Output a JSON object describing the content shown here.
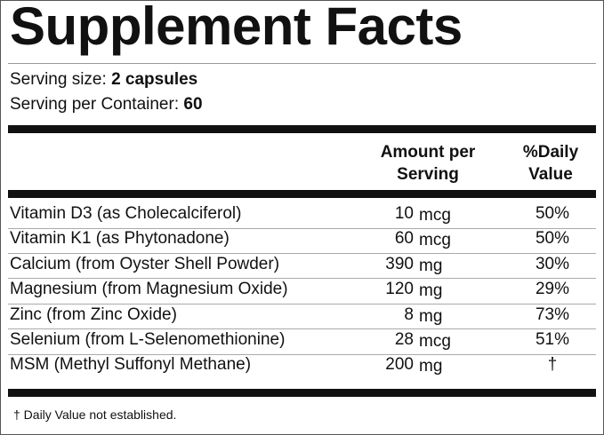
{
  "header": {
    "title": "Supplement Facts"
  },
  "serving": {
    "size_label": "Serving size:",
    "size_value": "2 capsules",
    "container_label": "Serving per Container:",
    "container_value": "60"
  },
  "table": {
    "columns": {
      "amount_line1": "Amount per",
      "amount_line2": "Serving",
      "dv_line1": "%Daily",
      "dv_line2": "Value"
    },
    "rows": [
      {
        "name": "Vitamin D3 (as Cholecalciferol)",
        "amount": "10",
        "unit": "mcg",
        "dv": "50%"
      },
      {
        "name": "Vitamin K1 (as Phytonadone)",
        "amount": "60",
        "unit": "mcg",
        "dv": "50%"
      },
      {
        "name": "Calcium (from Oyster Shell Powder)",
        "amount": "390",
        "unit": "mg",
        "dv": "30%"
      },
      {
        "name": "Magnesium (from Magnesium Oxide)",
        "amount": "120",
        "unit": "mg",
        "dv": "29%"
      },
      {
        "name": "Zinc (from Zinc Oxide)",
        "amount": "8",
        "unit": "mg",
        "dv": "73%"
      },
      {
        "name": "Selenium (from L-Selenomethionine)",
        "amount": "28",
        "unit": "mcg",
        "dv": "51%"
      },
      {
        "name": "MSM (Methyl Suffonyl Methane)",
        "amount": "200",
        "unit": "mg",
        "dv": "†"
      }
    ]
  },
  "footnote": "† Daily Value not established."
}
